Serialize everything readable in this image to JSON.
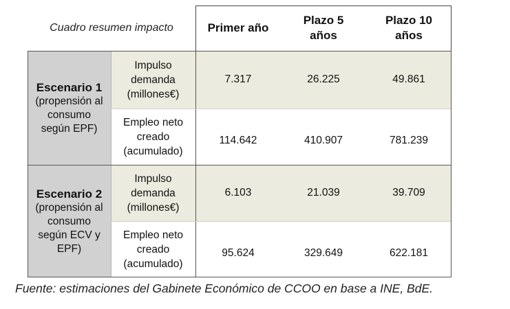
{
  "table": {
    "caption": "Cuadro resumen impacto",
    "columns": [
      "Primer año",
      "Plazo 5 años",
      "Plazo 10 años"
    ],
    "column_lines": [
      [
        "Primer año"
      ],
      [
        "Plazo 5",
        "años"
      ],
      [
        "Plazo 10",
        "años"
      ]
    ],
    "scenarios": [
      {
        "title": "Escenario 1",
        "subtitle_lines": [
          "(propensión al",
          "consumo",
          "según EPF)"
        ],
        "rows": [
          {
            "label_lines": [
              "Impulso",
              "demanda",
              "(millones€)"
            ],
            "values": [
              "7.317",
              "26.225",
              "49.861"
            ]
          },
          {
            "label_lines": [
              "Empleo neto",
              "creado",
              "(acumulado)"
            ],
            "values": [
              "114.642",
              "410.907",
              "781.239"
            ]
          }
        ]
      },
      {
        "title": "Escenario 2",
        "subtitle_lines": [
          "(propensión al",
          "consumo",
          "según ECV y",
          "EPF)"
        ],
        "rows": [
          {
            "label_lines": [
              "Impulso",
              "demanda",
              "(millones€)"
            ],
            "values": [
              "6.103",
              "21.039",
              "39.709"
            ]
          },
          {
            "label_lines": [
              "Empleo neto",
              "creado",
              "(acumulado)"
            ],
            "values": [
              "95.624",
              "329.649",
              "622.181"
            ]
          }
        ]
      }
    ]
  },
  "source": "Fuente: estimaciones del Gabinete Económico de CCOO en base a INE, BdE.",
  "colors": {
    "scenario_bg": "#d1d1d1",
    "row_shade": "#ecebdf",
    "border": "#555555"
  }
}
